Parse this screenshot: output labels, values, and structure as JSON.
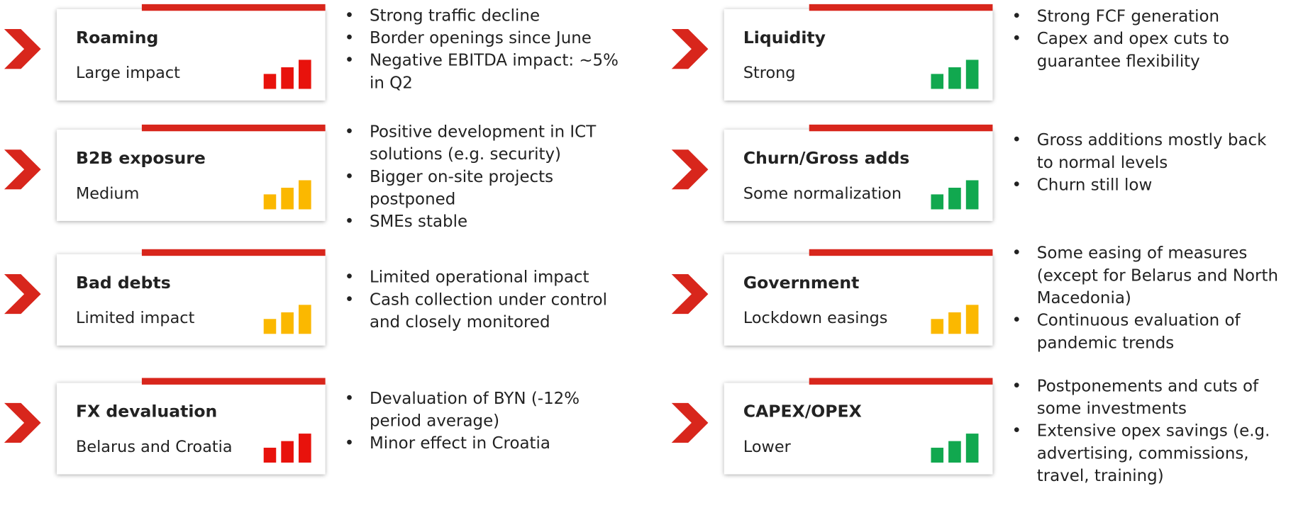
{
  "items": [
    {
      "title": "Roaming",
      "status": "Large impact",
      "color": "#e8120c",
      "bullets": [
        "Strong traffic decline",
        "Border openings since June",
        "Negative EBITDA impact: ~5% in Q2"
      ]
    },
    {
      "title": "B2B exposure",
      "status": "Medium",
      "color": "#fbb800",
      "bullets": [
        "Positive development in ICT solutions (e.g. security)",
        "Bigger on-site projects postponed",
        "SMEs stable"
      ]
    },
    {
      "title": "Bad debts",
      "status": "Limited impact",
      "color": "#fbb800",
      "bullets": [
        "Limited operational impact",
        "Cash collection under control and closely monitored"
      ]
    },
    {
      "title": "FX devaluation",
      "status": "Belarus and Croatia",
      "color": "#e8120c",
      "bullets": [
        "Devaluation of BYN (-12% period average)",
        "Minor effect in Croatia"
      ]
    },
    {
      "title": "Liquidity",
      "status": "Strong",
      "color": "#11a84f",
      "bullets": [
        "Strong FCF generation",
        "Capex and opex cuts to guarantee flexibility"
      ]
    },
    {
      "title": "Churn/Gross adds",
      "status": "Some normalization",
      "color": "#11a84f",
      "bullets": [
        "Gross additions mostly back to normal levels",
        "Churn still low"
      ]
    },
    {
      "title": "Government",
      "status": "Lockdown easings",
      "color": "#fbb800",
      "bullets": [
        "Some easing of measures (except for Belarus and North Macedonia)",
        "Continuous evaluation of pandemic trends"
      ]
    },
    {
      "title": "CAPEX/OPEX",
      "status": "Lower",
      "color": "#11a84f",
      "bullets": [
        "Postponements and cuts of some investments",
        "Extensive opex savings (e.g. advertising, commissions, travel, training)"
      ]
    }
  ]
}
